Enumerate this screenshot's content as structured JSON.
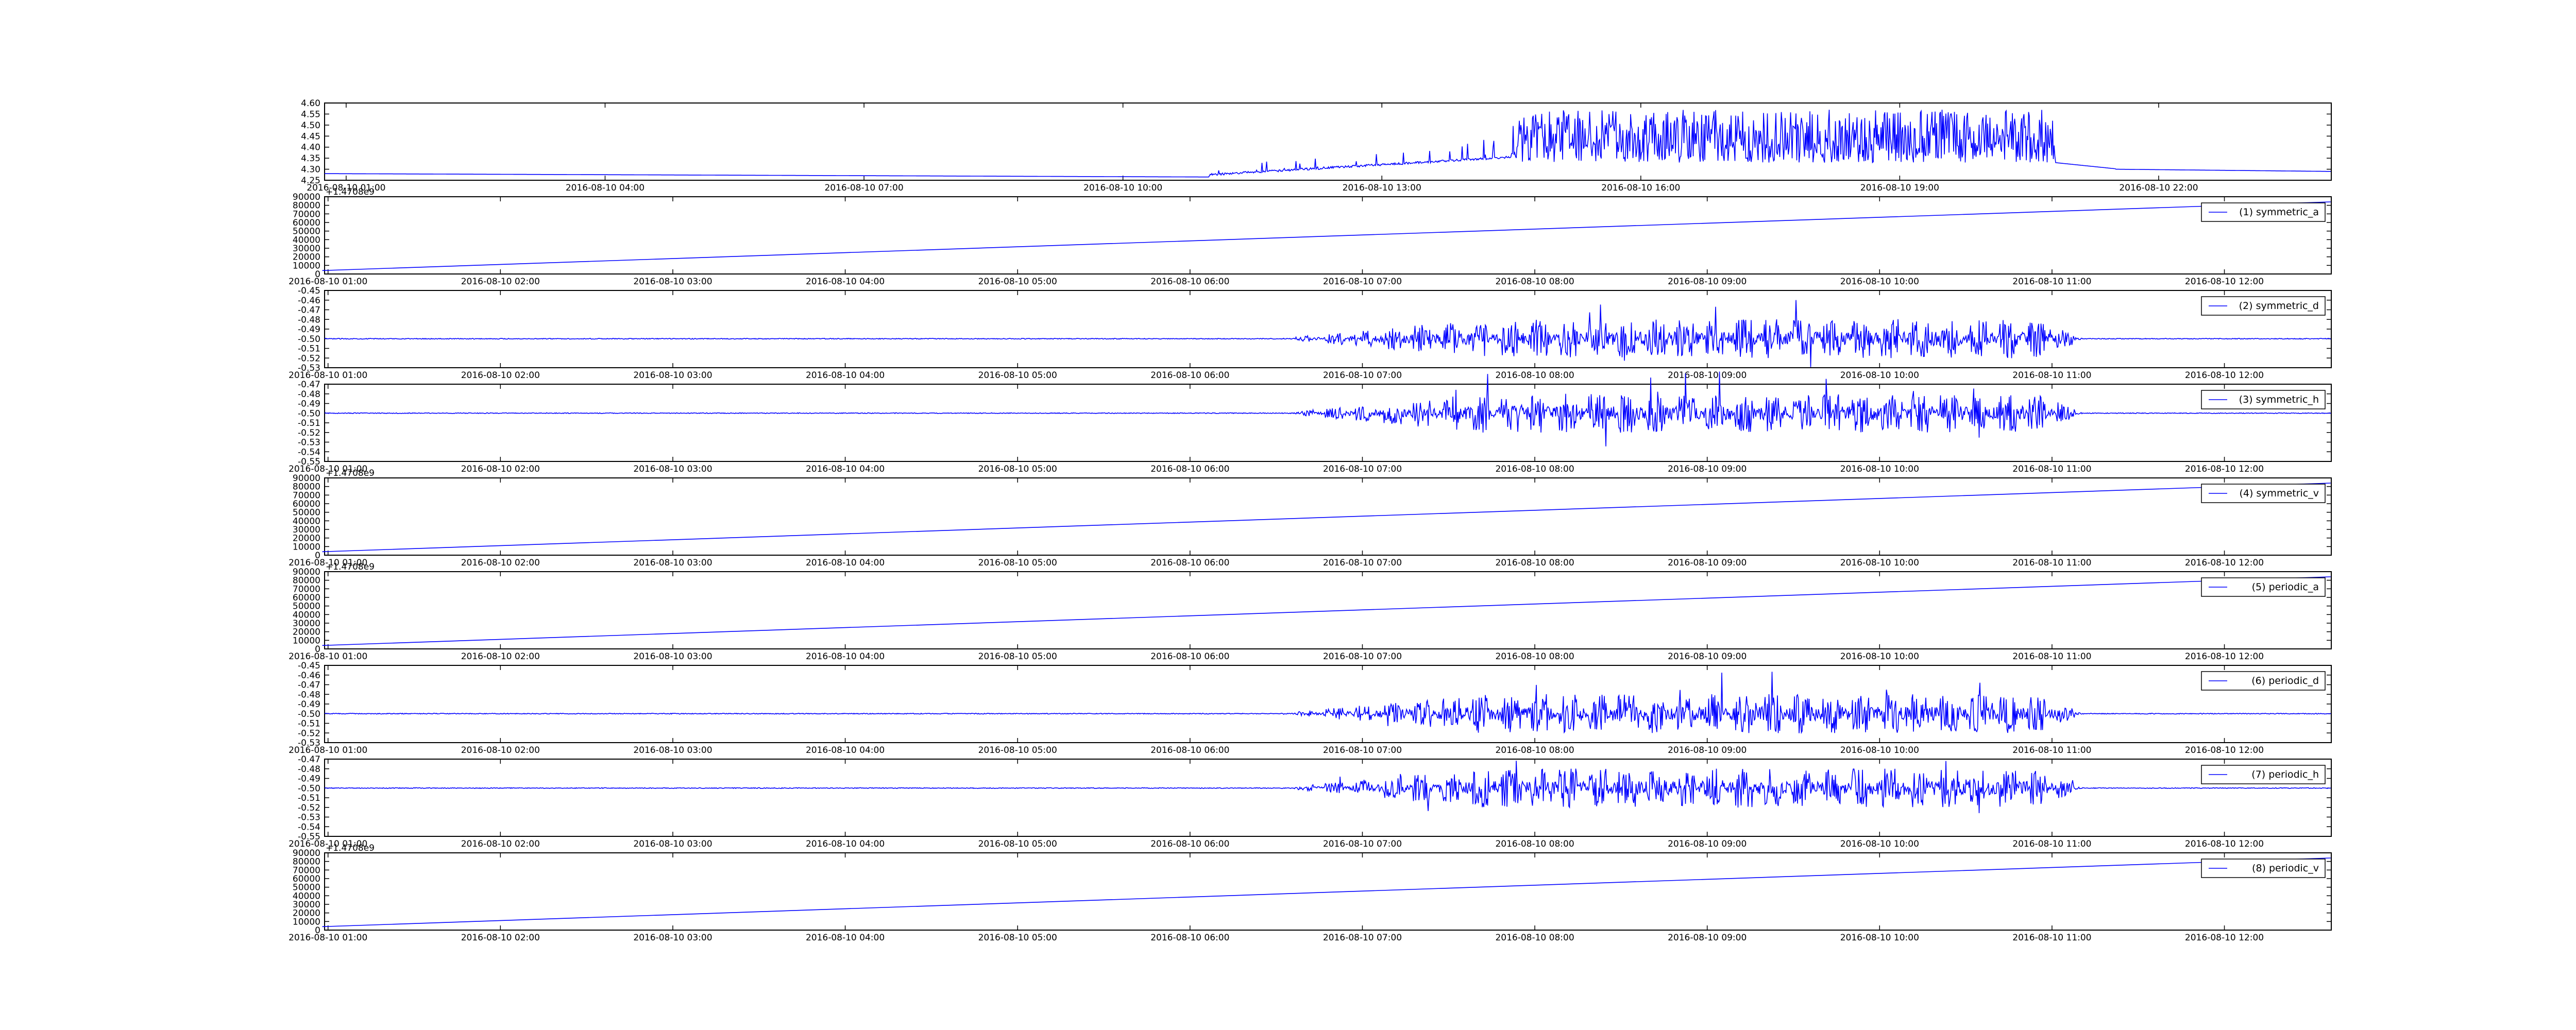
{
  "figure": {
    "panel_count": 9,
    "line_color": "#0000ff",
    "axes_color": "#000000",
    "legend_border_color": "#000000",
    "font_family": null
  },
  "chart_data": [
    {
      "type": "line",
      "title": "",
      "xlabel": "",
      "ylabel": "",
      "x_ticks": [
        "2016-08-10 01:00",
        "2016-08-10 04:00",
        "2016-08-10 07:00",
        "2016-08-10 10:00",
        "2016-08-10 13:00",
        "2016-08-10 16:00",
        "2016-08-10 19:00",
        "2016-08-10 22:00"
      ],
      "x_range_hours": [
        0.75,
        24
      ],
      "y_ticks": [
        "4.25",
        "4.30",
        "4.35",
        "4.40",
        "4.45",
        "4.50",
        "4.55",
        "4.60"
      ],
      "ylim": [
        4.25,
        4.6
      ],
      "offset_text": "",
      "legend": "",
      "grid": false,
      "series": [
        {
          "profile": "battery_voltage",
          "baseline": 4.28,
          "active_window_hours": [
            11.5,
            20.8
          ],
          "peak": 4.57
        }
      ]
    },
    {
      "type": "line",
      "title": "",
      "xlabel": "",
      "ylabel": "",
      "x_ticks": [
        "2016-08-10 01:00",
        "2016-08-10 02:00",
        "2016-08-10 03:00",
        "2016-08-10 04:00",
        "2016-08-10 05:00",
        "2016-08-10 06:00",
        "2016-08-10 07:00",
        "2016-08-10 08:00",
        "2016-08-10 09:00",
        "2016-08-10 10:00",
        "2016-08-10 11:00",
        "2016-08-10 12:00"
      ],
      "x_range_hours": [
        0.98,
        12.62
      ],
      "y_ticks": [
        "0",
        "10000",
        "20000",
        "30000",
        "40000",
        "50000",
        "60000",
        "70000",
        "80000",
        "90000"
      ],
      "ylim": [
        0,
        90000
      ],
      "offset_text": "+1.4708e9",
      "legend": "(1) symmetric_a",
      "grid": false,
      "series": [
        {
          "name": "(1) symmetric_a",
          "profile": "linear",
          "x": [
            "2016-08-10 00:58",
            "2016-08-10 12:37"
          ],
          "y": [
            4000,
            84000
          ]
        }
      ]
    },
    {
      "type": "line",
      "title": "",
      "xlabel": "",
      "ylabel": "",
      "x_ticks": [
        "2016-08-10 01:00",
        "2016-08-10 02:00",
        "2016-08-10 03:00",
        "2016-08-10 04:00",
        "2016-08-10 05:00",
        "2016-08-10 06:00",
        "2016-08-10 07:00",
        "2016-08-10 08:00",
        "2016-08-10 09:00",
        "2016-08-10 10:00",
        "2016-08-10 11:00",
        "2016-08-10 12:00"
      ],
      "x_range_hours": [
        0.98,
        12.62
      ],
      "y_ticks": [
        "-0.53",
        "-0.52",
        "-0.51",
        "-0.50",
        "-0.49",
        "-0.48",
        "-0.47",
        "-0.46",
        "-0.45"
      ],
      "ylim": [
        -0.53,
        -0.45
      ],
      "offset_text": "",
      "legend": "(2) symmetric_d",
      "grid": false,
      "series": [
        {
          "name": "(2) symmetric_d",
          "profile": "noise",
          "baseline": -0.5,
          "active_window_hours": [
            6.5,
            11.2
          ],
          "max_excursion": 0.045
        }
      ]
    },
    {
      "type": "line",
      "title": "",
      "xlabel": "",
      "ylabel": "",
      "x_ticks": [
        "2016-08-10 01:00",
        "2016-08-10 02:00",
        "2016-08-10 03:00",
        "2016-08-10 04:00",
        "2016-08-10 05:00",
        "2016-08-10 06:00",
        "2016-08-10 07:00",
        "2016-08-10 08:00",
        "2016-08-10 09:00",
        "2016-08-10 10:00",
        "2016-08-10 11:00",
        "2016-08-10 12:00"
      ],
      "x_range_hours": [
        0.98,
        12.62
      ],
      "y_ticks": [
        "-0.55",
        "-0.54",
        "-0.53",
        "-0.52",
        "-0.51",
        "-0.50",
        "-0.49",
        "-0.48",
        "-0.47"
      ],
      "ylim": [
        -0.55,
        -0.47
      ],
      "offset_text": "",
      "legend": "(3) symmetric_h",
      "grid": false,
      "series": [
        {
          "name": "(3) symmetric_h",
          "profile": "noise",
          "baseline": -0.5,
          "active_window_hours": [
            6.5,
            11.2
          ],
          "max_excursion": 0.045
        }
      ]
    },
    {
      "type": "line",
      "title": "",
      "xlabel": "",
      "ylabel": "",
      "x_ticks": [
        "2016-08-10 01:00",
        "2016-08-10 02:00",
        "2016-08-10 03:00",
        "2016-08-10 04:00",
        "2016-08-10 05:00",
        "2016-08-10 06:00",
        "2016-08-10 07:00",
        "2016-08-10 08:00",
        "2016-08-10 09:00",
        "2016-08-10 10:00",
        "2016-08-10 11:00",
        "2016-08-10 12:00"
      ],
      "x_range_hours": [
        0.98,
        12.62
      ],
      "y_ticks": [
        "0",
        "10000",
        "20000",
        "30000",
        "40000",
        "50000",
        "60000",
        "70000",
        "80000",
        "90000"
      ],
      "ylim": [
        0,
        90000
      ],
      "offset_text": "+1.4708e9",
      "legend": "(4) symmetric_v",
      "grid": false,
      "series": [
        {
          "name": "(4) symmetric_v",
          "profile": "linear",
          "x": [
            "2016-08-10 00:58",
            "2016-08-10 12:37"
          ],
          "y": [
            4000,
            84000
          ]
        }
      ]
    },
    {
      "type": "line",
      "title": "",
      "xlabel": "",
      "ylabel": "",
      "x_ticks": [
        "2016-08-10 01:00",
        "2016-08-10 02:00",
        "2016-08-10 03:00",
        "2016-08-10 04:00",
        "2016-08-10 05:00",
        "2016-08-10 06:00",
        "2016-08-10 07:00",
        "2016-08-10 08:00",
        "2016-08-10 09:00",
        "2016-08-10 10:00",
        "2016-08-10 11:00",
        "2016-08-10 12:00"
      ],
      "x_range_hours": [
        0.98,
        12.62
      ],
      "y_ticks": [
        "0",
        "10000",
        "20000",
        "30000",
        "40000",
        "50000",
        "60000",
        "70000",
        "80000",
        "90000"
      ],
      "ylim": [
        0,
        90000
      ],
      "offset_text": "+1.4708e9",
      "legend": "(5) periodic_a",
      "grid": false,
      "series": [
        {
          "name": "(5) periodic_a",
          "profile": "linear",
          "x": [
            "2016-08-10 00:58",
            "2016-08-10 12:37"
          ],
          "y": [
            4000,
            84000
          ]
        }
      ]
    },
    {
      "type": "line",
      "title": "",
      "xlabel": "",
      "ylabel": "",
      "x_ticks": [
        "2016-08-10 01:00",
        "2016-08-10 02:00",
        "2016-08-10 03:00",
        "2016-08-10 04:00",
        "2016-08-10 05:00",
        "2016-08-10 06:00",
        "2016-08-10 07:00",
        "2016-08-10 08:00",
        "2016-08-10 09:00",
        "2016-08-10 10:00",
        "2016-08-10 11:00",
        "2016-08-10 12:00"
      ],
      "x_range_hours": [
        0.98,
        12.62
      ],
      "y_ticks": [
        "-0.53",
        "-0.52",
        "-0.51",
        "-0.50",
        "-0.49",
        "-0.48",
        "-0.47",
        "-0.46",
        "-0.45"
      ],
      "ylim": [
        -0.53,
        -0.45
      ],
      "offset_text": "",
      "legend": "(6) periodic_d",
      "grid": false,
      "series": [
        {
          "name": "(6) periodic_d",
          "profile": "noise",
          "baseline": -0.5,
          "active_window_hours": [
            6.5,
            11.2
          ],
          "max_excursion": 0.045
        }
      ]
    },
    {
      "type": "line",
      "title": "",
      "xlabel": "",
      "ylabel": "",
      "x_ticks": [
        "2016-08-10 01:00",
        "2016-08-10 02:00",
        "2016-08-10 03:00",
        "2016-08-10 04:00",
        "2016-08-10 05:00",
        "2016-08-10 06:00",
        "2016-08-10 07:00",
        "2016-08-10 08:00",
        "2016-08-10 09:00",
        "2016-08-10 10:00",
        "2016-08-10 11:00",
        "2016-08-10 12:00"
      ],
      "x_range_hours": [
        0.98,
        12.62
      ],
      "y_ticks": [
        "-0.55",
        "-0.54",
        "-0.53",
        "-0.52",
        "-0.51",
        "-0.50",
        "-0.49",
        "-0.48",
        "-0.47"
      ],
      "ylim": [
        -0.55,
        -0.47
      ],
      "offset_text": "",
      "legend": "(7) periodic_h",
      "grid": false,
      "series": [
        {
          "name": "(7) periodic_h",
          "profile": "noise",
          "baseline": -0.5,
          "active_window_hours": [
            6.5,
            11.2
          ],
          "max_excursion": 0.045
        }
      ]
    },
    {
      "type": "line",
      "title": "",
      "xlabel": "",
      "ylabel": "",
      "x_ticks": [
        "2016-08-10 01:00",
        "2016-08-10 02:00",
        "2016-08-10 03:00",
        "2016-08-10 04:00",
        "2016-08-10 05:00",
        "2016-08-10 06:00",
        "2016-08-10 07:00",
        "2016-08-10 08:00",
        "2016-08-10 09:00",
        "2016-08-10 10:00",
        "2016-08-10 11:00",
        "2016-08-10 12:00"
      ],
      "x_range_hours": [
        0.98,
        12.62
      ],
      "y_ticks": [
        "0",
        "10000",
        "20000",
        "30000",
        "40000",
        "50000",
        "60000",
        "70000",
        "80000",
        "90000"
      ],
      "ylim": [
        0,
        90000
      ],
      "offset_text": "+1.4708e9",
      "legend": "(8) periodic_v",
      "grid": false,
      "series": [
        {
          "name": "(8) periodic_v",
          "profile": "linear",
          "x": [
            "2016-08-10 00:58",
            "2016-08-10 12:37"
          ],
          "y": [
            4000,
            84000
          ]
        }
      ]
    }
  ]
}
